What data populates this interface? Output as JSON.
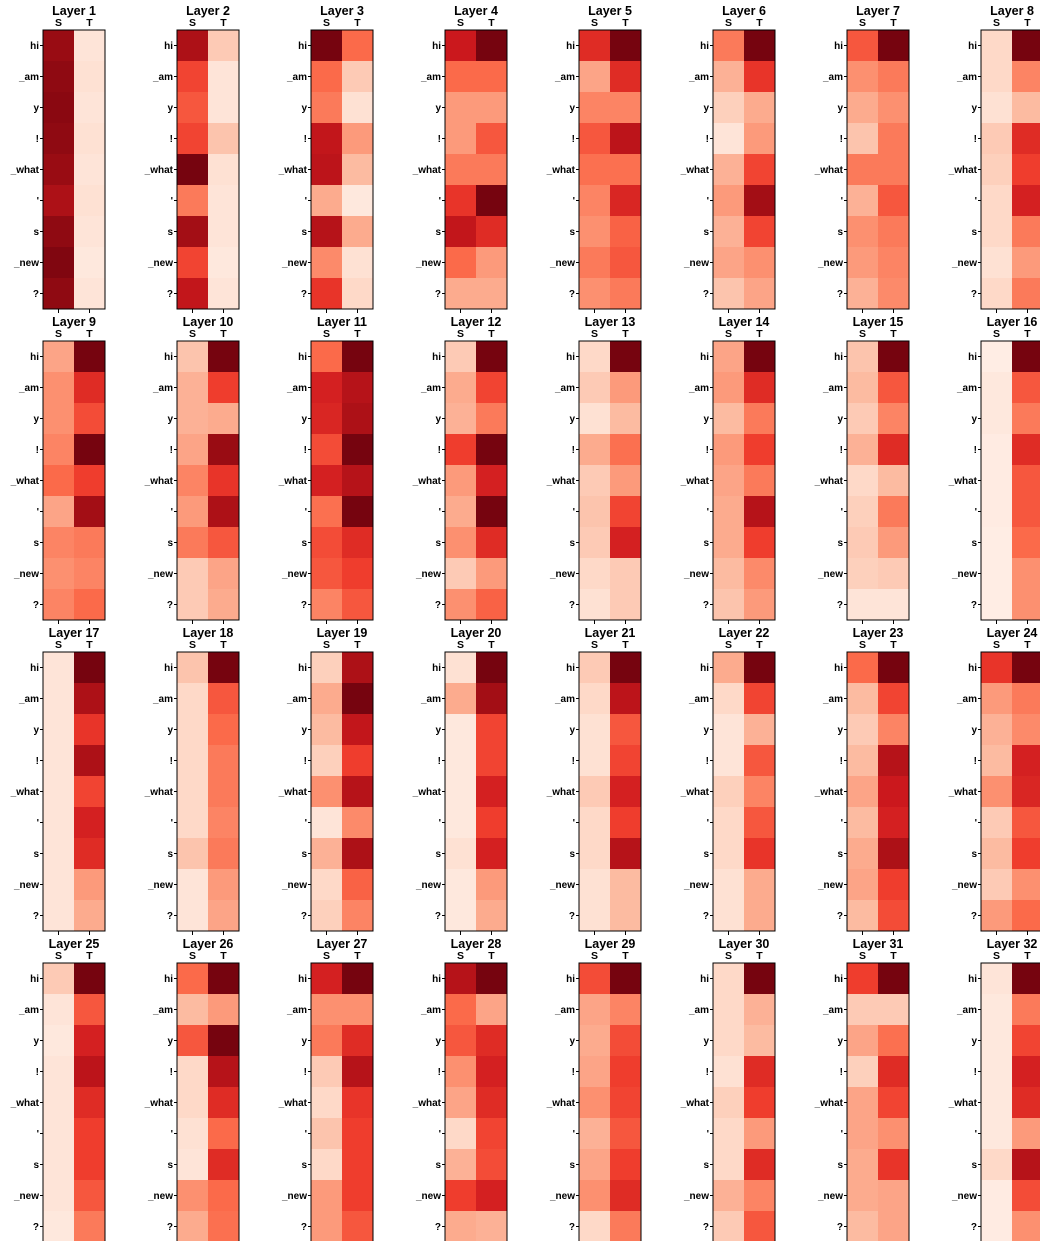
{
  "chart_data": {
    "type": "heatmap",
    "colormap": "Reds",
    "value_range": [
      0,
      1
    ],
    "rows": [
      "hi",
      "_am",
      "y",
      "!",
      "_what",
      "'",
      "s",
      "_new",
      "?"
    ],
    "columns": [
      "S",
      "T"
    ],
    "panels": [
      {
        "title": "Layer 1",
        "values": [
          [
            0.9,
            0.1
          ],
          [
            0.92,
            0.12
          ],
          [
            0.93,
            0.1
          ],
          [
            0.92,
            0.12
          ],
          [
            0.9,
            0.1
          ],
          [
            0.85,
            0.12
          ],
          [
            0.92,
            0.1
          ],
          [
            0.95,
            0.08
          ],
          [
            0.92,
            0.1
          ]
        ]
      },
      {
        "title": "Layer 2",
        "values": [
          [
            0.85,
            0.2
          ],
          [
            0.6,
            0.1
          ],
          [
            0.55,
            0.1
          ],
          [
            0.6,
            0.22
          ],
          [
            0.97,
            0.12
          ],
          [
            0.45,
            0.1
          ],
          [
            0.88,
            0.1
          ],
          [
            0.6,
            0.08
          ],
          [
            0.78,
            0.1
          ]
        ]
      },
      {
        "title": "Layer 3",
        "values": [
          [
            0.97,
            0.5
          ],
          [
            0.5,
            0.2
          ],
          [
            0.45,
            0.12
          ],
          [
            0.78,
            0.35
          ],
          [
            0.8,
            0.25
          ],
          [
            0.3,
            0.08
          ],
          [
            0.82,
            0.3
          ],
          [
            0.4,
            0.12
          ],
          [
            0.65,
            0.15
          ]
        ]
      },
      {
        "title": "Layer 4",
        "values": [
          [
            0.75,
            0.97
          ],
          [
            0.5,
            0.5
          ],
          [
            0.35,
            0.35
          ],
          [
            0.35,
            0.55
          ],
          [
            0.45,
            0.45
          ],
          [
            0.65,
            0.97
          ],
          [
            0.78,
            0.68
          ],
          [
            0.5,
            0.35
          ],
          [
            0.3,
            0.3
          ]
        ]
      },
      {
        "title": "Layer 5",
        "values": [
          [
            0.68,
            0.97
          ],
          [
            0.32,
            0.68
          ],
          [
            0.42,
            0.42
          ],
          [
            0.55,
            0.8
          ],
          [
            0.48,
            0.48
          ],
          [
            0.42,
            0.7
          ],
          [
            0.38,
            0.52
          ],
          [
            0.45,
            0.55
          ],
          [
            0.38,
            0.45
          ]
        ]
      },
      {
        "title": "Layer 6",
        "values": [
          [
            0.45,
            0.97
          ],
          [
            0.28,
            0.65
          ],
          [
            0.18,
            0.3
          ],
          [
            0.1,
            0.35
          ],
          [
            0.28,
            0.6
          ],
          [
            0.35,
            0.88
          ],
          [
            0.28,
            0.6
          ],
          [
            0.32,
            0.38
          ],
          [
            0.22,
            0.32
          ]
        ]
      },
      {
        "title": "Layer 7",
        "values": [
          [
            0.55,
            0.97
          ],
          [
            0.38,
            0.45
          ],
          [
            0.3,
            0.38
          ],
          [
            0.22,
            0.45
          ],
          [
            0.45,
            0.45
          ],
          [
            0.28,
            0.55
          ],
          [
            0.38,
            0.45
          ],
          [
            0.35,
            0.42
          ],
          [
            0.28,
            0.4
          ]
        ]
      },
      {
        "title": "Layer 8",
        "values": [
          [
            0.15,
            0.97
          ],
          [
            0.15,
            0.42
          ],
          [
            0.12,
            0.25
          ],
          [
            0.2,
            0.68
          ],
          [
            0.18,
            0.62
          ],
          [
            0.15,
            0.72
          ],
          [
            0.15,
            0.45
          ],
          [
            0.12,
            0.35
          ],
          [
            0.15,
            0.45
          ]
        ]
      },
      {
        "title": "Layer 9",
        "values": [
          [
            0.32,
            0.97
          ],
          [
            0.38,
            0.68
          ],
          [
            0.38,
            0.58
          ],
          [
            0.42,
            0.97
          ],
          [
            0.5,
            0.62
          ],
          [
            0.32,
            0.88
          ],
          [
            0.42,
            0.45
          ],
          [
            0.38,
            0.42
          ],
          [
            0.42,
            0.5
          ]
        ]
      },
      {
        "title": "Layer 10",
        "values": [
          [
            0.22,
            0.97
          ],
          [
            0.28,
            0.62
          ],
          [
            0.28,
            0.3
          ],
          [
            0.32,
            0.9
          ],
          [
            0.42,
            0.65
          ],
          [
            0.35,
            0.85
          ],
          [
            0.45,
            0.55
          ],
          [
            0.2,
            0.32
          ],
          [
            0.2,
            0.3
          ]
        ]
      },
      {
        "title": "Layer 11",
        "values": [
          [
            0.5,
            0.97
          ],
          [
            0.72,
            0.82
          ],
          [
            0.7,
            0.85
          ],
          [
            0.58,
            0.97
          ],
          [
            0.72,
            0.82
          ],
          [
            0.48,
            0.97
          ],
          [
            0.58,
            0.68
          ],
          [
            0.55,
            0.62
          ],
          [
            0.42,
            0.55
          ]
        ]
      },
      {
        "title": "Layer 12",
        "values": [
          [
            0.2,
            0.97
          ],
          [
            0.3,
            0.6
          ],
          [
            0.28,
            0.45
          ],
          [
            0.62,
            0.97
          ],
          [
            0.35,
            0.72
          ],
          [
            0.3,
            0.97
          ],
          [
            0.38,
            0.68
          ],
          [
            0.2,
            0.35
          ],
          [
            0.38,
            0.52
          ]
        ]
      },
      {
        "title": "Layer 13",
        "values": [
          [
            0.15,
            0.97
          ],
          [
            0.2,
            0.35
          ],
          [
            0.12,
            0.25
          ],
          [
            0.3,
            0.48
          ],
          [
            0.2,
            0.35
          ],
          [
            0.22,
            0.6
          ],
          [
            0.2,
            0.72
          ],
          [
            0.15,
            0.2
          ],
          [
            0.12,
            0.2
          ]
        ]
      },
      {
        "title": "Layer 14",
        "values": [
          [
            0.32,
            0.97
          ],
          [
            0.35,
            0.68
          ],
          [
            0.25,
            0.45
          ],
          [
            0.35,
            0.62
          ],
          [
            0.32,
            0.45
          ],
          [
            0.3,
            0.82
          ],
          [
            0.3,
            0.62
          ],
          [
            0.25,
            0.4
          ],
          [
            0.22,
            0.35
          ]
        ]
      },
      {
        "title": "Layer 15",
        "values": [
          [
            0.22,
            0.97
          ],
          [
            0.25,
            0.55
          ],
          [
            0.2,
            0.42
          ],
          [
            0.28,
            0.68
          ],
          [
            0.15,
            0.25
          ],
          [
            0.18,
            0.45
          ],
          [
            0.2,
            0.35
          ],
          [
            0.18,
            0.2
          ],
          [
            0.1,
            0.1
          ]
        ]
      },
      {
        "title": "Layer 16",
        "values": [
          [
            0.05,
            0.97
          ],
          [
            0.08,
            0.55
          ],
          [
            0.08,
            0.45
          ],
          [
            0.06,
            0.68
          ],
          [
            0.06,
            0.55
          ],
          [
            0.06,
            0.55
          ],
          [
            0.05,
            0.5
          ],
          [
            0.05,
            0.38
          ],
          [
            0.05,
            0.38
          ]
        ]
      },
      {
        "title": "Layer 17",
        "values": [
          [
            0.1,
            0.97
          ],
          [
            0.1,
            0.85
          ],
          [
            0.1,
            0.65
          ],
          [
            0.1,
            0.85
          ],
          [
            0.1,
            0.6
          ],
          [
            0.1,
            0.72
          ],
          [
            0.1,
            0.68
          ],
          [
            0.1,
            0.35
          ],
          [
            0.1,
            0.3
          ]
        ]
      },
      {
        "title": "Layer 18",
        "values": [
          [
            0.22,
            0.97
          ],
          [
            0.15,
            0.55
          ],
          [
            0.15,
            0.5
          ],
          [
            0.15,
            0.45
          ],
          [
            0.15,
            0.45
          ],
          [
            0.15,
            0.42
          ],
          [
            0.22,
            0.45
          ],
          [
            0.1,
            0.35
          ],
          [
            0.1,
            0.32
          ]
        ]
      },
      {
        "title": "Layer 19",
        "values": [
          [
            0.18,
            0.85
          ],
          [
            0.3,
            0.97
          ],
          [
            0.25,
            0.78
          ],
          [
            0.18,
            0.62
          ],
          [
            0.38,
            0.82
          ],
          [
            0.1,
            0.4
          ],
          [
            0.28,
            0.85
          ],
          [
            0.15,
            0.52
          ],
          [
            0.18,
            0.42
          ]
        ]
      },
      {
        "title": "Layer 20",
        "values": [
          [
            0.12,
            0.97
          ],
          [
            0.3,
            0.88
          ],
          [
            0.08,
            0.6
          ],
          [
            0.08,
            0.6
          ],
          [
            0.08,
            0.72
          ],
          [
            0.08,
            0.62
          ],
          [
            0.12,
            0.72
          ],
          [
            0.08,
            0.35
          ],
          [
            0.08,
            0.3
          ]
        ]
      },
      {
        "title": "Layer 21",
        "values": [
          [
            0.2,
            0.97
          ],
          [
            0.15,
            0.8
          ],
          [
            0.12,
            0.55
          ],
          [
            0.12,
            0.6
          ],
          [
            0.2,
            0.72
          ],
          [
            0.15,
            0.62
          ],
          [
            0.15,
            0.82
          ],
          [
            0.12,
            0.25
          ],
          [
            0.12,
            0.25
          ]
        ]
      },
      {
        "title": "Layer 22",
        "values": [
          [
            0.3,
            0.97
          ],
          [
            0.15,
            0.6
          ],
          [
            0.1,
            0.28
          ],
          [
            0.1,
            0.55
          ],
          [
            0.18,
            0.42
          ],
          [
            0.15,
            0.55
          ],
          [
            0.15,
            0.65
          ],
          [
            0.12,
            0.3
          ],
          [
            0.12,
            0.3
          ]
        ]
      },
      {
        "title": "Layer 23",
        "values": [
          [
            0.5,
            0.97
          ],
          [
            0.25,
            0.6
          ],
          [
            0.2,
            0.42
          ],
          [
            0.25,
            0.82
          ],
          [
            0.32,
            0.75
          ],
          [
            0.25,
            0.72
          ],
          [
            0.3,
            0.85
          ],
          [
            0.32,
            0.62
          ],
          [
            0.25,
            0.58
          ]
        ]
      },
      {
        "title": "Layer 24",
        "values": [
          [
            0.65,
            0.97
          ],
          [
            0.35,
            0.45
          ],
          [
            0.28,
            0.4
          ],
          [
            0.25,
            0.72
          ],
          [
            0.38,
            0.7
          ],
          [
            0.2,
            0.55
          ],
          [
            0.25,
            0.62
          ],
          [
            0.2,
            0.38
          ],
          [
            0.35,
            0.5
          ]
        ]
      },
      {
        "title": "Layer 25",
        "values": [
          [
            0.2,
            0.97
          ],
          [
            0.1,
            0.55
          ],
          [
            0.08,
            0.72
          ],
          [
            0.1,
            0.8
          ],
          [
            0.1,
            0.68
          ],
          [
            0.1,
            0.62
          ],
          [
            0.1,
            0.62
          ],
          [
            0.1,
            0.55
          ],
          [
            0.08,
            0.45
          ]
        ]
      },
      {
        "title": "Layer 26",
        "values": [
          [
            0.5,
            0.97
          ],
          [
            0.25,
            0.35
          ],
          [
            0.55,
            0.97
          ],
          [
            0.15,
            0.82
          ],
          [
            0.15,
            0.68
          ],
          [
            0.12,
            0.5
          ],
          [
            0.1,
            0.68
          ],
          [
            0.38,
            0.5
          ],
          [
            0.3,
            0.48
          ]
        ]
      },
      {
        "title": "Layer 27",
        "values": [
          [
            0.72,
            0.97
          ],
          [
            0.38,
            0.38
          ],
          [
            0.45,
            0.68
          ],
          [
            0.2,
            0.82
          ],
          [
            0.15,
            0.65
          ],
          [
            0.22,
            0.62
          ],
          [
            0.15,
            0.62
          ],
          [
            0.35,
            0.62
          ],
          [
            0.35,
            0.55
          ]
        ]
      },
      {
        "title": "Layer 28",
        "values": [
          [
            0.82,
            0.97
          ],
          [
            0.5,
            0.32
          ],
          [
            0.55,
            0.68
          ],
          [
            0.38,
            0.72
          ],
          [
            0.32,
            0.68
          ],
          [
            0.15,
            0.6
          ],
          [
            0.28,
            0.58
          ],
          [
            0.62,
            0.72
          ],
          [
            0.3,
            0.28
          ]
        ]
      },
      {
        "title": "Layer 29",
        "values": [
          [
            0.58,
            0.97
          ],
          [
            0.32,
            0.42
          ],
          [
            0.3,
            0.58
          ],
          [
            0.32,
            0.62
          ],
          [
            0.38,
            0.6
          ],
          [
            0.28,
            0.55
          ],
          [
            0.32,
            0.62
          ],
          [
            0.38,
            0.68
          ],
          [
            0.15,
            0.45
          ]
        ]
      },
      {
        "title": "Layer 30",
        "values": [
          [
            0.15,
            0.97
          ],
          [
            0.15,
            0.28
          ],
          [
            0.15,
            0.25
          ],
          [
            0.12,
            0.68
          ],
          [
            0.18,
            0.62
          ],
          [
            0.15,
            0.35
          ],
          [
            0.15,
            0.68
          ],
          [
            0.28,
            0.42
          ],
          [
            0.2,
            0.55
          ]
        ]
      },
      {
        "title": "Layer 31",
        "values": [
          [
            0.62,
            0.97
          ],
          [
            0.2,
            0.2
          ],
          [
            0.32,
            0.48
          ],
          [
            0.18,
            0.68
          ],
          [
            0.32,
            0.6
          ],
          [
            0.32,
            0.38
          ],
          [
            0.3,
            0.65
          ],
          [
            0.3,
            0.32
          ],
          [
            0.25,
            0.32
          ]
        ]
      },
      {
        "title": "Layer 32",
        "values": [
          [
            0.1,
            0.97
          ],
          [
            0.08,
            0.45
          ],
          [
            0.08,
            0.6
          ],
          [
            0.08,
            0.72
          ],
          [
            0.08,
            0.68
          ],
          [
            0.08,
            0.35
          ],
          [
            0.15,
            0.82
          ],
          [
            0.06,
            0.58
          ],
          [
            0.06,
            0.38
          ]
        ]
      }
    ]
  }
}
